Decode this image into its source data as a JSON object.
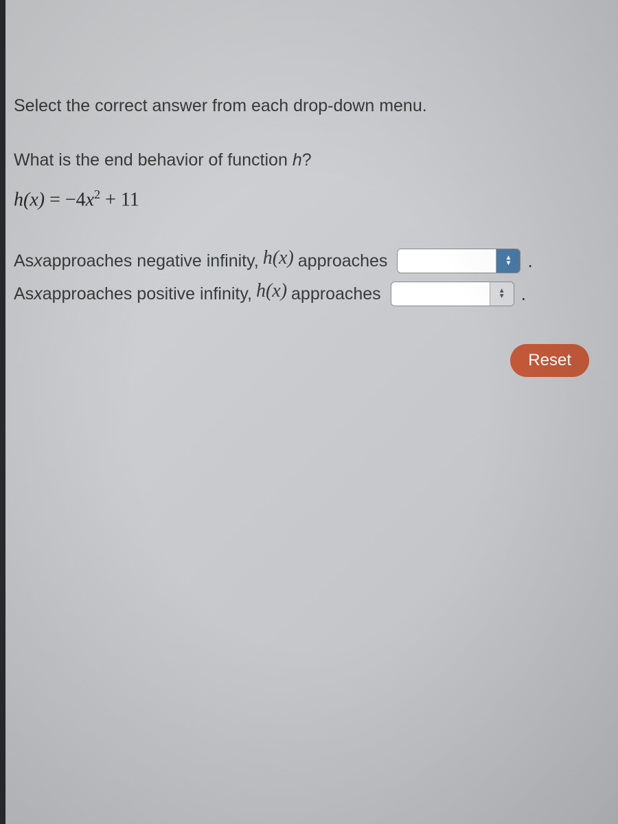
{
  "instruction": "Select the correct answer from each drop-down menu.",
  "question_prefix": "What is the end behavior of function ",
  "question_func": "h",
  "question_suffix": "?",
  "formula": {
    "lhs": "h(x)",
    "eq": " = ",
    "coef": "−4",
    "var": "x",
    "exp": "2",
    "rest": " + 11"
  },
  "statements": [
    {
      "prefix": "As ",
      "var": "x",
      "mid": " approaches negative infinity, ",
      "hx": "h(x)",
      "after": " approaches",
      "dropdown_value": "",
      "dropdown_style": "dark",
      "period": "."
    },
    {
      "prefix": "As ",
      "var": "x",
      "mid": " approaches positive infinity, ",
      "hx": "h(x)",
      "after": " approaches",
      "dropdown_value": "",
      "dropdown_style": "light",
      "period": "."
    }
  ],
  "reset_label": "Reset",
  "colors": {
    "reset_bg": "#c45a3a",
    "dropdown_dark": "#4a7aa8",
    "dropdown_light": "#d8dadd",
    "text": "#3a3a3a",
    "page_bg": "#c8cace"
  }
}
